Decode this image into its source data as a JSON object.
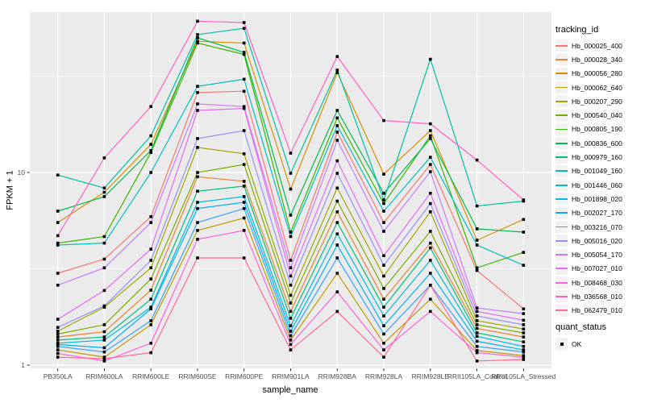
{
  "figure": {
    "background": "#FFFFFF",
    "panel_background": "#EBEBEB",
    "gridline_major_color": "#FFFFFF",
    "gridline_minor_color": "#FFFFFF",
    "tick_color": "#333333",
    "tick_label_color": "#4D4D4D",
    "marker_color": "#000000",
    "legend_key_background": "#F2F2F2"
  },
  "chart_data": {
    "type": "line",
    "title": "",
    "xlabel": "sample_name",
    "ylabel": "FPKM + 1",
    "y_scale": "log10",
    "ylim": [
      0.95,
      66
    ],
    "grid": "on",
    "legend_position": "right",
    "y_ticks": [
      {
        "label": "10",
        "value": 10
      },
      {
        "label": "1",
        "value": 1
      }
    ],
    "y_minor_gridlines": [
      31.623,
      3.1623
    ],
    "categories": [
      "PB350LA",
      "RRIM600LA",
      "RRIM600LE",
      "RRIM600SE",
      "RRIM600PE",
      "RRIM901LA",
      "RRIM928BA",
      "RRIM928LA",
      "RRIM928LE",
      "RRII105LA_Control",
      "RRII105LA_Stressed"
    ],
    "legend_title": "tracking_id",
    "legend2_title": "quant_status",
    "legend2_items": [
      "OK"
    ],
    "marker_shape": "square",
    "series": [
      {
        "name": "Hb_000025_400",
        "color": "#F8766D",
        "values": [
          3.0,
          3.55,
          5.9,
          26,
          26.4,
          3.5,
          16.2,
          5.5,
          11.0,
          3.1,
          1.96
        ]
      },
      {
        "name": "Hb_000028_340",
        "color": "#EA8331",
        "values": [
          1.4,
          1.49,
          2.45,
          9.5,
          9.0,
          1.9,
          6.25,
          2.2,
          4.3,
          1.55,
          1.4
        ]
      },
      {
        "name": "Hb_000056_280",
        "color": "#D89000",
        "values": [
          5.5,
          7.9,
          14,
          48,
          47,
          8.2,
          33,
          9.8,
          16.5,
          4.45,
          5.7
        ]
      },
      {
        "name": "Hb_000062_640",
        "color": "#C09B00",
        "values": [
          1.2,
          1.1,
          1.62,
          5.0,
          5.8,
          1.35,
          3.0,
          1.3,
          2.2,
          1.19,
          1.12
        ]
      },
      {
        "name": "Hb_000207_290",
        "color": "#A3A500",
        "values": [
          1.5,
          2.0,
          3.2,
          13.5,
          12.5,
          2.3,
          8.3,
          2.9,
          6.25,
          1.7,
          1.54
        ]
      },
      {
        "name": "Hb_000540_040",
        "color": "#7CAE00",
        "values": [
          1.45,
          1.62,
          2.8,
          10,
          11,
          2.1,
          7.1,
          2.5,
          4.95,
          1.62,
          1.47
        ]
      },
      {
        "name": "Hb_000805_190",
        "color": "#39B600",
        "values": [
          4.3,
          4.65,
          12.7,
          47,
          41,
          4.9,
          19.2,
          6.9,
          15.5,
          3.2,
          3.85
        ]
      },
      {
        "name": "Hb_000836_600",
        "color": "#00BB4E",
        "values": [
          6.3,
          7.5,
          13,
          50,
          42,
          6.0,
          21,
          7.8,
          15.0,
          5.1,
          4.9
        ]
      },
      {
        "name": "Hb_000979_160",
        "color": "#00BF7D",
        "values": [
          1.35,
          1.4,
          2.2,
          8.0,
          8.5,
          1.75,
          5.5,
          2.0,
          4.06,
          1.47,
          1.32
        ]
      },
      {
        "name": "Hb_001049_160",
        "color": "#00C1A3",
        "values": [
          9.7,
          8.3,
          15.5,
          52,
          56,
          9.9,
          34,
          7.2,
          38.7,
          6.7,
          7.1
        ]
      },
      {
        "name": "Hb_001446_060",
        "color": "#00BFC4",
        "values": [
          4.2,
          4.3,
          10,
          28,
          30.5,
          4.65,
          17.5,
          6.3,
          12.0,
          4.2,
          3.3
        ]
      },
      {
        "name": "Hb_001898_020",
        "color": "#00BAE0",
        "values": [
          1.3,
          1.35,
          2.0,
          7.0,
          7.5,
          1.6,
          4.8,
          1.8,
          3.5,
          1.41,
          1.25
        ]
      },
      {
        "name": "Hb_002027_170",
        "color": "#00B0F6",
        "values": [
          1.28,
          1.23,
          1.96,
          6.5,
          7.0,
          1.5,
          4.2,
          1.6,
          3.0,
          1.33,
          1.2
        ]
      },
      {
        "name": "Hb_003216_070",
        "color": "#35A2FF",
        "values": [
          1.25,
          1.17,
          1.7,
          5.5,
          6.5,
          1.42,
          3.6,
          1.45,
          2.6,
          1.25,
          1.17
        ]
      },
      {
        "name": "Hb_005016_020",
        "color": "#9590FF",
        "values": [
          1.57,
          2.03,
          3.5,
          15,
          16.5,
          2.6,
          9.9,
          3.3,
          6.9,
          1.8,
          1.62
        ]
      },
      {
        "name": "Hb_005054_170",
        "color": "#C77CFF",
        "values": [
          2.6,
          3.2,
          5.5,
          22.7,
          22,
          3.2,
          14.7,
          4.95,
          10.1,
          1.98,
          1.85
        ]
      },
      {
        "name": "Hb_007027_010",
        "color": "#E76BF3",
        "values": [
          1.73,
          2.44,
          4.0,
          21,
          21.5,
          2.9,
          11.5,
          3.7,
          7.8,
          1.9,
          1.71
        ]
      },
      {
        "name": "Hb_008468_030",
        "color": "#FA62DB",
        "values": [
          1.15,
          1.05,
          1.3,
          4.5,
          5.0,
          1.28,
          2.4,
          1.2,
          1.9,
          1.16,
          1.1
        ]
      },
      {
        "name": "Hb_036568_010",
        "color": "#FF61C3",
        "values": [
          4.7,
          11.9,
          22,
          61,
          60,
          12.6,
          40,
          18.6,
          17.9,
          11.6,
          7.2
        ]
      },
      {
        "name": "Hb_062479_010",
        "color": "#FF6A98",
        "values": [
          1.1,
          1.08,
          1.16,
          3.6,
          3.6,
          1.2,
          1.9,
          1.1,
          2.6,
          1.05,
          1.07
        ]
      }
    ]
  }
}
